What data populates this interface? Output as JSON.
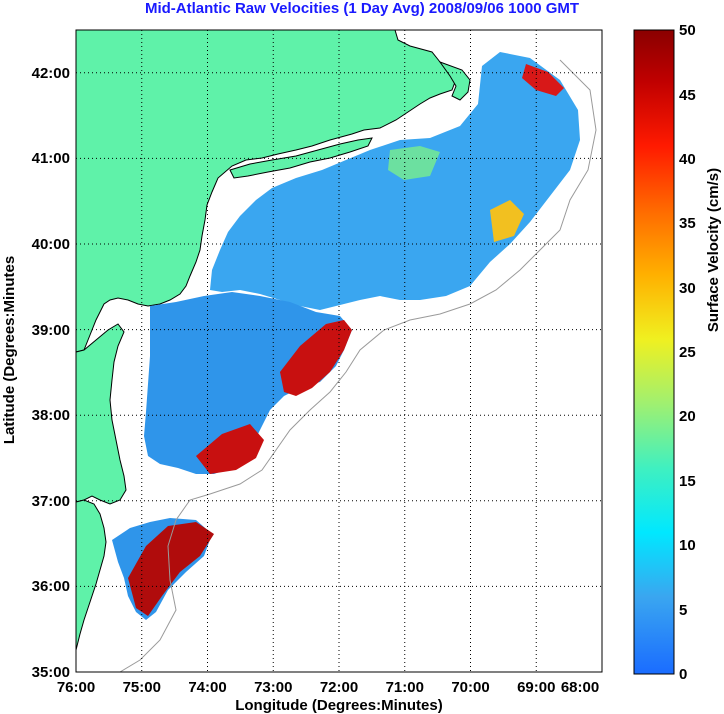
{
  "title": "Mid-Atlantic Raw Velocities (1 Day Avg) 2008/09/06 1000 GMT",
  "colors": {
    "land": "#5ff2a9",
    "coast": "#000000",
    "bathy": "#9a9a9a",
    "title": "#1a1aff"
  },
  "chart_data": {
    "type": "heatmap",
    "xlabel": "Longitude (Degrees:Minutes)",
    "ylabel": "Latitude (Degrees:Minutes",
    "x_ticks": [
      "76:00",
      "75:00",
      "74:00",
      "73:00",
      "72:00",
      "71:00",
      "70:00",
      "69:00",
      "68:00"
    ],
    "y_ticks": [
      "42:00",
      "41:00",
      "40:00",
      "39:00",
      "38:00",
      "37:00",
      "36:00",
      "35:00"
    ],
    "xlim": [
      -76,
      -68
    ],
    "ylim": [
      35,
      42.5
    ],
    "grid": true,
    "colorbar": {
      "label": "Surface Velocity (cm/s)",
      "ticks": [
        0,
        5,
        10,
        15,
        20,
        25,
        30,
        35,
        40,
        45,
        50
      ],
      "range": [
        0,
        50
      ]
    }
  }
}
